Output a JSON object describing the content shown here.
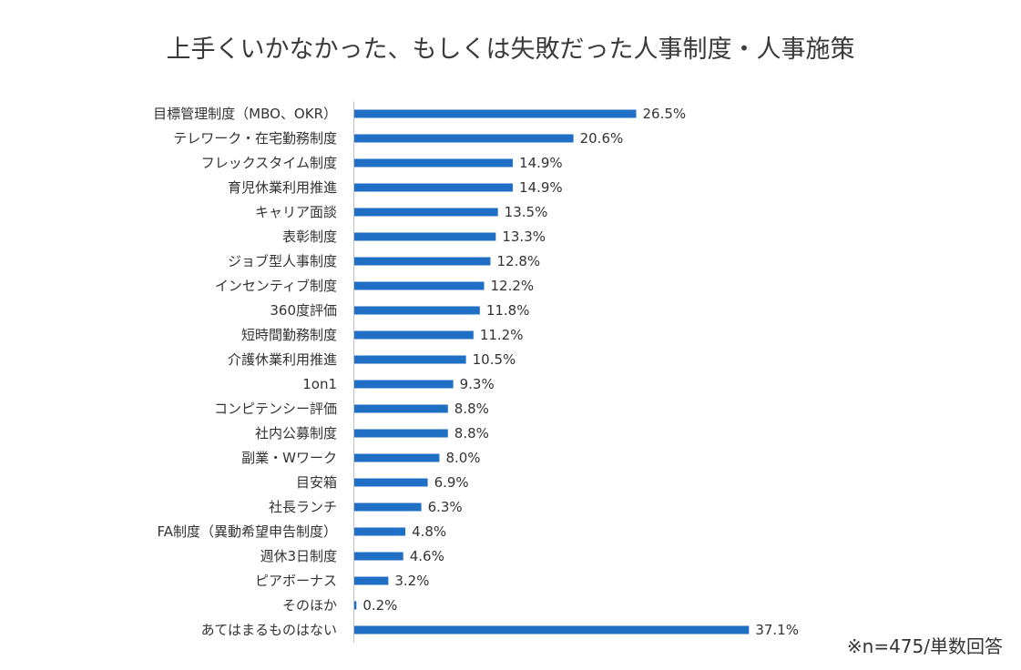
{
  "chart_data": {
    "type": "bar",
    "orientation": "horizontal",
    "title": "上手くいかなかった、もしくは失敗だった人事制度・人事施策",
    "footnote": "※n=475/単数回答",
    "unit": "%",
    "bar_color": "#1f6fc5",
    "categories": [
      "目標管理制度（MBO、OKR）",
      "テレワーク・在宅勤務制度",
      "フレックスタイム制度",
      "育児休業利用推進",
      "キャリア面談",
      "表彰制度",
      "ジョブ型人事制度",
      "インセンティブ制度",
      "360度評価",
      "短時間勤務制度",
      "介護休業利用推進",
      "1on1",
      "コンピテンシー評価",
      "社内公募制度",
      "副業・Wワーク",
      "目安箱",
      "社長ランチ",
      "FA制度（異動希望申告制度）",
      "週休3日制度",
      "ピアボーナス",
      "そのほか",
      "あてはまるものはない"
    ],
    "values": [
      26.5,
      20.6,
      14.9,
      14.9,
      13.5,
      13.3,
      12.8,
      12.2,
      11.8,
      11.2,
      10.5,
      9.3,
      8.8,
      8.8,
      8.0,
      6.9,
      6.3,
      4.8,
      4.6,
      3.2,
      0.2,
      37.1
    ],
    "value_labels": [
      "26.5%",
      "20.6%",
      "14.9%",
      "14.9%",
      "13.5%",
      "13.3%",
      "12.8%",
      "12.2%",
      "11.8%",
      "11.2%",
      "10.5%",
      "9.3%",
      "8.8%",
      "8.8%",
      "8.0%",
      "6.9%",
      "6.3%",
      "4.8%",
      "4.6%",
      "3.2%",
      "0.2%",
      "37.1%"
    ],
    "xlim": [
      0,
      37.1
    ]
  }
}
